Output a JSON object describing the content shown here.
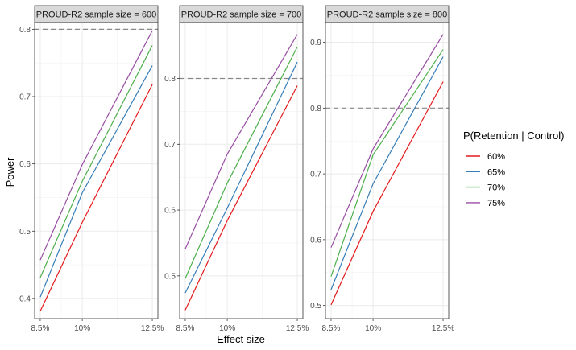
{
  "chart_data": {
    "type": "line",
    "xlabel": "Effect size",
    "ylabel": "Power",
    "x": [
      8.5,
      10,
      12.5
    ],
    "x_tick_labels": [
      "8.5%",
      "10%",
      "12.5%"
    ],
    "legend": {
      "title": "P(Retention | Control)",
      "position": "right"
    },
    "series_colors": {
      "60%": "#e41a1c",
      "65%": "#377eb8",
      "70%": "#4daf4a",
      "75%": "#984ea3"
    },
    "reference_line": {
      "y": 0.8,
      "style": "dashed",
      "color": "#888888"
    },
    "grid": true,
    "panels": [
      {
        "title": "PROUD-R2 sample size = 600",
        "ylim": [
          0.37,
          0.81
        ],
        "y_ticks": [
          0.4,
          0.5,
          0.6,
          0.7,
          0.8
        ],
        "y_tick_labels": [
          "0.4",
          "0.5",
          "0.6",
          "0.7",
          "0.8"
        ],
        "series": [
          {
            "name": "60%",
            "values": [
              0.381,
              0.513,
              0.718
            ]
          },
          {
            "name": "65%",
            "values": [
              0.402,
              0.557,
              0.746
            ]
          },
          {
            "name": "70%",
            "values": [
              0.431,
              0.574,
              0.776
            ]
          },
          {
            "name": "75%",
            "values": [
              0.457,
              0.599,
              0.798
            ]
          }
        ]
      },
      {
        "title": "PROUD-R2 sample size = 700",
        "ylim": [
          0.435,
          0.885
        ],
        "y_ticks": [
          0.5,
          0.6,
          0.7,
          0.8
        ],
        "y_tick_labels": [
          "0.5",
          "0.6",
          "0.7",
          "0.8"
        ],
        "series": [
          {
            "name": "60%",
            "values": [
              0.448,
              0.584,
              0.789
            ]
          },
          {
            "name": "65%",
            "values": [
              0.474,
              0.603,
              0.825
            ]
          },
          {
            "name": "70%",
            "values": [
              0.496,
              0.641,
              0.848
            ]
          },
          {
            "name": "75%",
            "values": [
              0.541,
              0.685,
              0.867
            ]
          }
        ]
      },
      {
        "title": "PROUD-R2 sample size = 800",
        "ylim": [
          0.48,
          0.93
        ],
        "y_ticks": [
          0.5,
          0.6,
          0.7,
          0.8,
          0.9
        ],
        "y_tick_labels": [
          "0.5",
          "0.6",
          "0.7",
          "0.8",
          "0.9"
        ],
        "series": [
          {
            "name": "60%",
            "values": [
              0.501,
              0.643,
              0.84
            ]
          },
          {
            "name": "65%",
            "values": [
              0.524,
              0.685,
              0.878
            ]
          },
          {
            "name": "70%",
            "values": [
              0.544,
              0.729,
              0.889
            ]
          },
          {
            "name": "75%",
            "values": [
              0.588,
              0.738,
              0.912
            ]
          }
        ]
      }
    ]
  }
}
